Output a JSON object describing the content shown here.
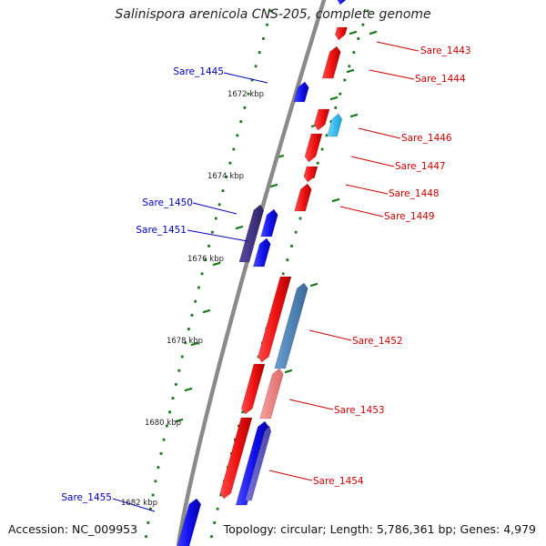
{
  "title": "Salinispora arenicola CNS-205, complete genome",
  "footer": {
    "accession": "Accession: NC_009953",
    "summary": "Topology: circular; Length: 5,786,361 bp; Genes: 4,979"
  },
  "scale_labels": [
    "1672 kbp",
    "1674 kbp",
    "1676 kbp",
    "1678 kbp",
    "1680 kbp",
    "1682 kbp"
  ],
  "colors": {
    "backbone": "#8a8a8a",
    "tick": "#1a7a1a",
    "forward_gene": "#ee1111",
    "reverse_gene": "#1111ee",
    "light_blue_gene": "#33bbee",
    "purple_gene": "#443388",
    "steel_blue_gene": "#4a7fb5",
    "pink_gene": "#ee8080",
    "reverse_label": "#0000bb",
    "forward_label": "#cc0000"
  },
  "gene_labels": {
    "right": [
      "Sare_1443",
      "Sare_1444",
      "Sare_1446",
      "Sare_1447",
      "Sare_1448",
      "Sare_1449",
      "Sare_1452",
      "Sare_1453",
      "Sare_1454"
    ],
    "left": [
      "Sare_1445",
      "Sare_1450",
      "Sare_1451",
      "Sare_1455"
    ]
  }
}
